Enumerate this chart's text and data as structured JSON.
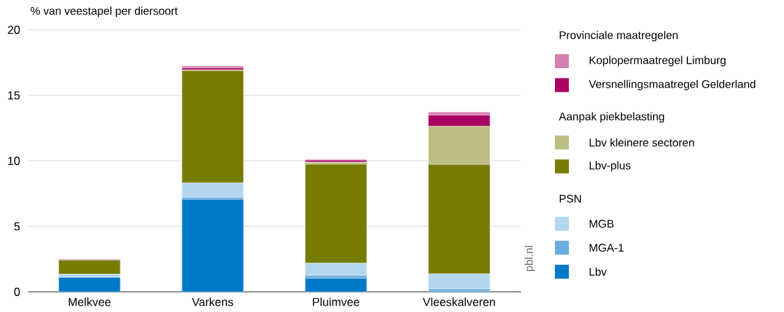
{
  "chart_data": {
    "type": "bar",
    "stacked": true,
    "ylabel": "% van veestapel per diersoort",
    "categories": [
      "Melkvee",
      "Varkens",
      "Pluimvee",
      "Vleeskalveren"
    ],
    "series": [
      {
        "name": "Lbv",
        "color": "#0079c8",
        "values": [
          1.1,
          7.06,
          1.04,
          0.05
        ]
      },
      {
        "name": "MGA-1",
        "color": "#6aaedf",
        "values": [
          0.05,
          0.16,
          0.22,
          0.18
        ]
      },
      {
        "name": "MGB",
        "color": "#b3d7ef",
        "values": [
          0.2,
          1.1,
          0.93,
          1.15
        ]
      },
      {
        "name": "Lbv-plus",
        "color": "#777c00",
        "values": [
          1.07,
          8.56,
          7.56,
          8.35
        ]
      },
      {
        "name": "Lbv kleinere sectoren",
        "color": "#bcbe84",
        "values": [
          0,
          0.05,
          0.16,
          2.91
        ]
      },
      {
        "name": "Versnellingsmaatregel Gelderland",
        "color": "#a90061",
        "values": [
          0.03,
          0.15,
          0.14,
          0.85
        ]
      },
      {
        "name": "Koplopermaatregel Limburg",
        "color": "#d47fb0",
        "values": [
          0.05,
          0.16,
          0.07,
          0.24
        ]
      }
    ],
    "ylim": [
      0,
      20
    ],
    "yticks": [
      0,
      5,
      10,
      15,
      20
    ],
    "grid": "y",
    "legend": "right",
    "annotations": [
      "Provinciale maatregelen",
      "Aanpak piekbelasting",
      "PSN",
      "pbl.nl"
    ]
  }
}
